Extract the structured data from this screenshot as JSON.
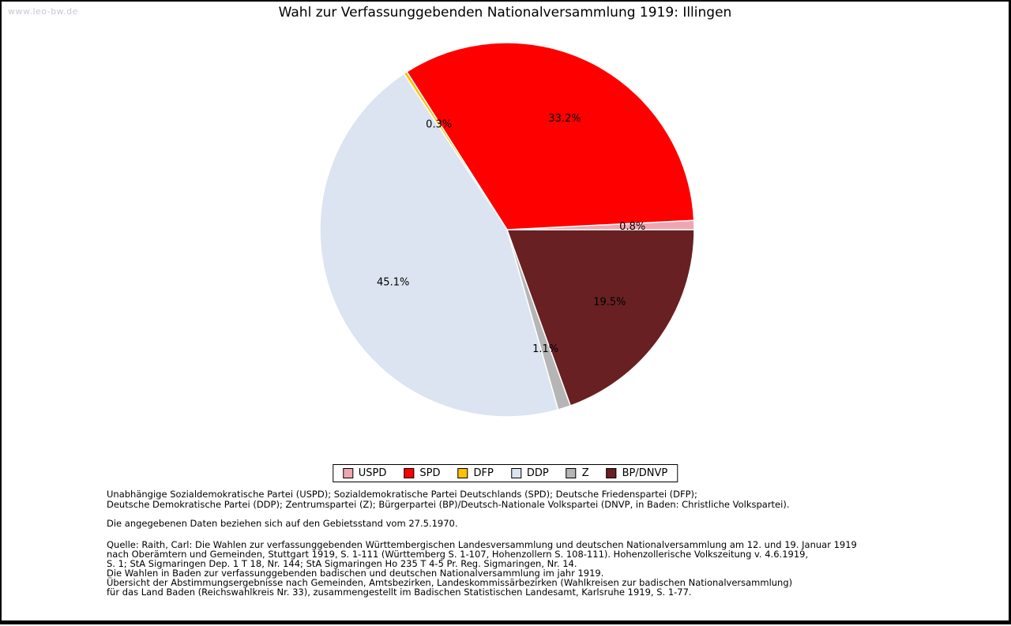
{
  "watermark": "www.leo-bw.de",
  "title": "Wahl zur Verfassunggebenden Nationalversammlung 1919: Illingen",
  "chart_data": {
    "type": "pie",
    "title": "Wahl zur Verfassunggebenden Nationalversammlung 1919: Illingen",
    "start_angle_deg": 0,
    "direction": "counterclockwise",
    "legend_position": "bottom",
    "label_radius_fraction": 0.67,
    "slices": [
      {
        "label": "USPD",
        "value": 0.8,
        "display": "0.8%",
        "color": "#f0a6b0"
      },
      {
        "label": "SPD",
        "value": 33.2,
        "display": "33.2%",
        "color": "#fe0000"
      },
      {
        "label": "DFP",
        "value": 0.3,
        "display": "0.3%",
        "color": "#ffc103"
      },
      {
        "label": "DDP",
        "value": 45.1,
        "display": "45.1%",
        "color": "#dbe4f0"
      },
      {
        "label": "Z",
        "value": 1.1,
        "display": "1.1%",
        "color": "#b5b5b5"
      },
      {
        "label": "BP/DNVP",
        "value": 19.5,
        "display": "19.5%",
        "color": "#682023"
      }
    ]
  },
  "footnotes": {
    "parties": [
      "Unabhängige Sozialdemokratische Partei (USPD); Sozialdemokratische Partei Deutschlands (SPD); Deutsche Friedenspartei (DFP);",
      "Deutsche Demokratische Partei (DDP); Zentrumspartei (Z); Bürgerpartei (BP)/Deutsch-Nationale Volkspartei (DNVP, in Baden: Christliche Volkspartei)."
    ],
    "note": "Die angegebenen Daten beziehen sich auf den Gebietsstand vom 27.5.1970.",
    "source": [
      "Quelle: Raith, Carl: Die Wahlen zur verfassunggebenden Württembergischen Landesversammlung und deutschen Nationalversammlung am 12. und 19. Januar 1919",
      "nach Oberämtern und Gemeinden, Stuttgart 1919, S. 1-111 (Württemberg S. 1-107, Hohenzollern S. 108-111). Hohenzollerische Volkszeitung v. 4.6.1919,",
      "S. 1; StA Sigmaringen Dep. 1 T 18, Nr. 144; StA Sigmaringen Ho 235 T 4-5 Pr. Reg. Sigmaringen, Nr. 14.",
      "Die Wahlen in Baden zur verfassunggebenden badischen und deutschen Nationalversammlung im jahr 1919.",
      "Übersicht der Abstimmungsergebnisse nach Gemeinden, Amtsbezirken, Landeskommissärbezirken (Wahlkreisen zur badischen Nationalversammlung)",
      "für das Land Baden (Reichswahlkreis Nr. 33), zusammengestellt im Badischen Statistischen Landesamt, Karlsruhe 1919, S. 1-77."
    ]
  }
}
